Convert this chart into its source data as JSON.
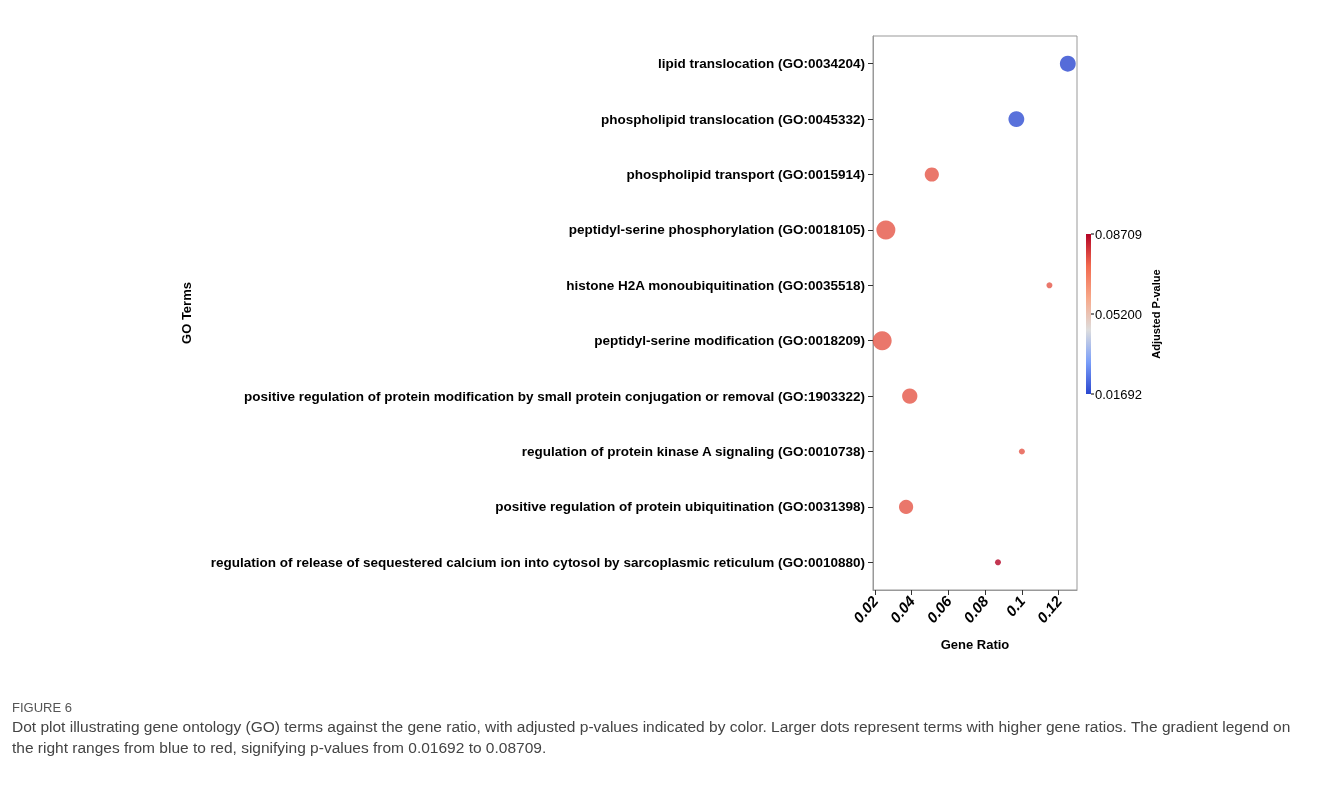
{
  "chart_data": {
    "type": "bubble",
    "xlabel": "Gene Ratio",
    "ylabel": "GO Terms",
    "clabel": "Adjusted P-value",
    "categories": [
      "lipid translocation (GO:0034204)",
      "phospholipid translocation (GO:0045332)",
      "phospholipid transport (GO:0015914)",
      "peptidyl-serine phosphorylation (GO:0018105)",
      "histone H2A monoubiquitination (GO:0035518)",
      "peptidyl-serine modification (GO:0018209)",
      "positive regulation of protein modification by small protein conjugation or removal (GO:1903322)",
      "regulation of protein kinase A signaling (GO:0010738)",
      "positive regulation of protein ubiquitination (GO:0031398)",
      "regulation of release of sequestered calcium ion into cytosol by sarcoplasmic reticulum (GO:0010880)"
    ],
    "values": [
      0.125,
      0.097,
      0.051,
      0.026,
      0.115,
      0.024,
      0.039,
      0.1,
      0.037,
      0.087
    ],
    "sizes": [
      0.7,
      0.7,
      0.56,
      1,
      0.1,
      1,
      0.65,
      0.1,
      0.56,
      0.1
    ],
    "cvalues": [
      0.01692,
      0.018,
      0.076,
      0.076,
      0.076,
      0.076,
      0.076,
      0.076,
      0.076,
      0.08709
    ],
    "clim": [
      0.01692,
      0.08709
    ],
    "cticks": [
      0.01692,
      {
        "value": 0.052,
        "label": "0.05200"
      },
      0.08709
    ],
    "xlim": [
      0.019,
      0.13
    ],
    "xticks": [
      0.02,
      0.04,
      0.06,
      0.08,
      0.1,
      0.12
    ],
    "orientation": "horizontal",
    "grid": false,
    "marker": "circle",
    "annotations": [
      "FIGURE 6",
      "Dot plot illustrating gene ontology (GO) terms against the gene ratio, with adjusted p-values indicated by color. Larger dots represent terms with higher gene ratios. The gradient legend on the right ranges from blue to red, signifying p-values from 0.01692 to 0.08709."
    ]
  }
}
